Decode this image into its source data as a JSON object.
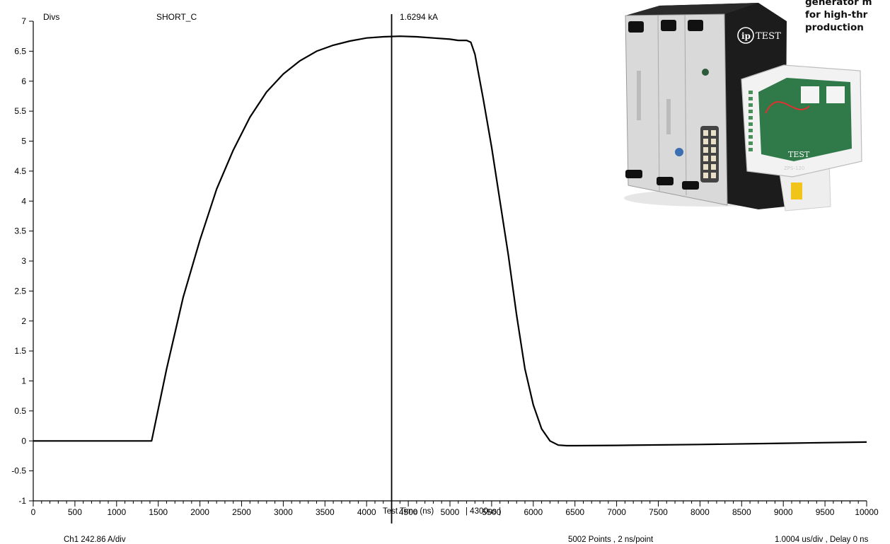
{
  "chart_data": {
    "type": "line",
    "title": "SHORT_C",
    "ylabel": "Divs",
    "xlabel": "Test Time (ns)",
    "xlim": [
      0,
      10000
    ],
    "ylim": [
      -1,
      7
    ],
    "x_ticks": [
      0,
      500,
      1000,
      1500,
      2000,
      2500,
      3000,
      3500,
      4000,
      4500,
      5000,
      5500,
      6000,
      6500,
      7000,
      7500,
      8000,
      8500,
      9000,
      9500,
      10000
    ],
    "y_ticks": [
      "-1",
      "-0.5",
      "0",
      "0.5",
      "1",
      "1.5",
      "2",
      "2.5",
      "3",
      "3.5",
      "4",
      "4.5",
      "5",
      "5.5",
      "6",
      "6.5",
      "7"
    ],
    "grid": false,
    "cursor": {
      "x": 4300,
      "value_label": "1.6294 kA",
      "time_label": "| 4300ns |"
    },
    "series": [
      {
        "channel": "Ch1",
        "x": [
          0,
          1420,
          1600,
          1800,
          2000,
          2200,
          2400,
          2600,
          2800,
          3000,
          3200,
          3400,
          3600,
          3800,
          4000,
          4200,
          4400,
          4600,
          4800,
          5000,
          5100,
          5200,
          5250,
          5300,
          5400,
          5500,
          5600,
          5700,
          5800,
          5900,
          6000,
          6100,
          6200,
          6300,
          6400,
          6500,
          7000,
          8000,
          9000,
          10000
        ],
        "y": [
          0,
          0.0,
          1.2,
          2.4,
          3.35,
          4.2,
          4.85,
          5.4,
          5.82,
          6.12,
          6.34,
          6.5,
          6.6,
          6.67,
          6.72,
          6.74,
          6.75,
          6.74,
          6.72,
          6.7,
          6.68,
          6.68,
          6.65,
          6.45,
          5.7,
          4.9,
          4.0,
          3.1,
          2.1,
          1.2,
          0.6,
          0.2,
          0.0,
          -0.07,
          -0.08,
          -0.08,
          -0.075,
          -0.06,
          -0.04,
          -0.02
        ]
      }
    ]
  },
  "footer": {
    "channel_scale": "Ch1   242.86 A/div",
    "points": "5002 Points , 2 ns/point",
    "timebase": "1.0004 us/div , Delay 0 ns"
  },
  "promo": {
    "lines": [
      "generator m",
      "for high-thr",
      "production"
    ]
  },
  "product_badge": {
    "logo_text": "TEST",
    "logo_mark": "ip",
    "small_label": "ZPS-120"
  },
  "colors": {
    "trace": "#000000",
    "axis": "#000000",
    "unit_body": "#1c1c1c",
    "panel": "#d9d9d9",
    "board": "#2f7a48"
  }
}
